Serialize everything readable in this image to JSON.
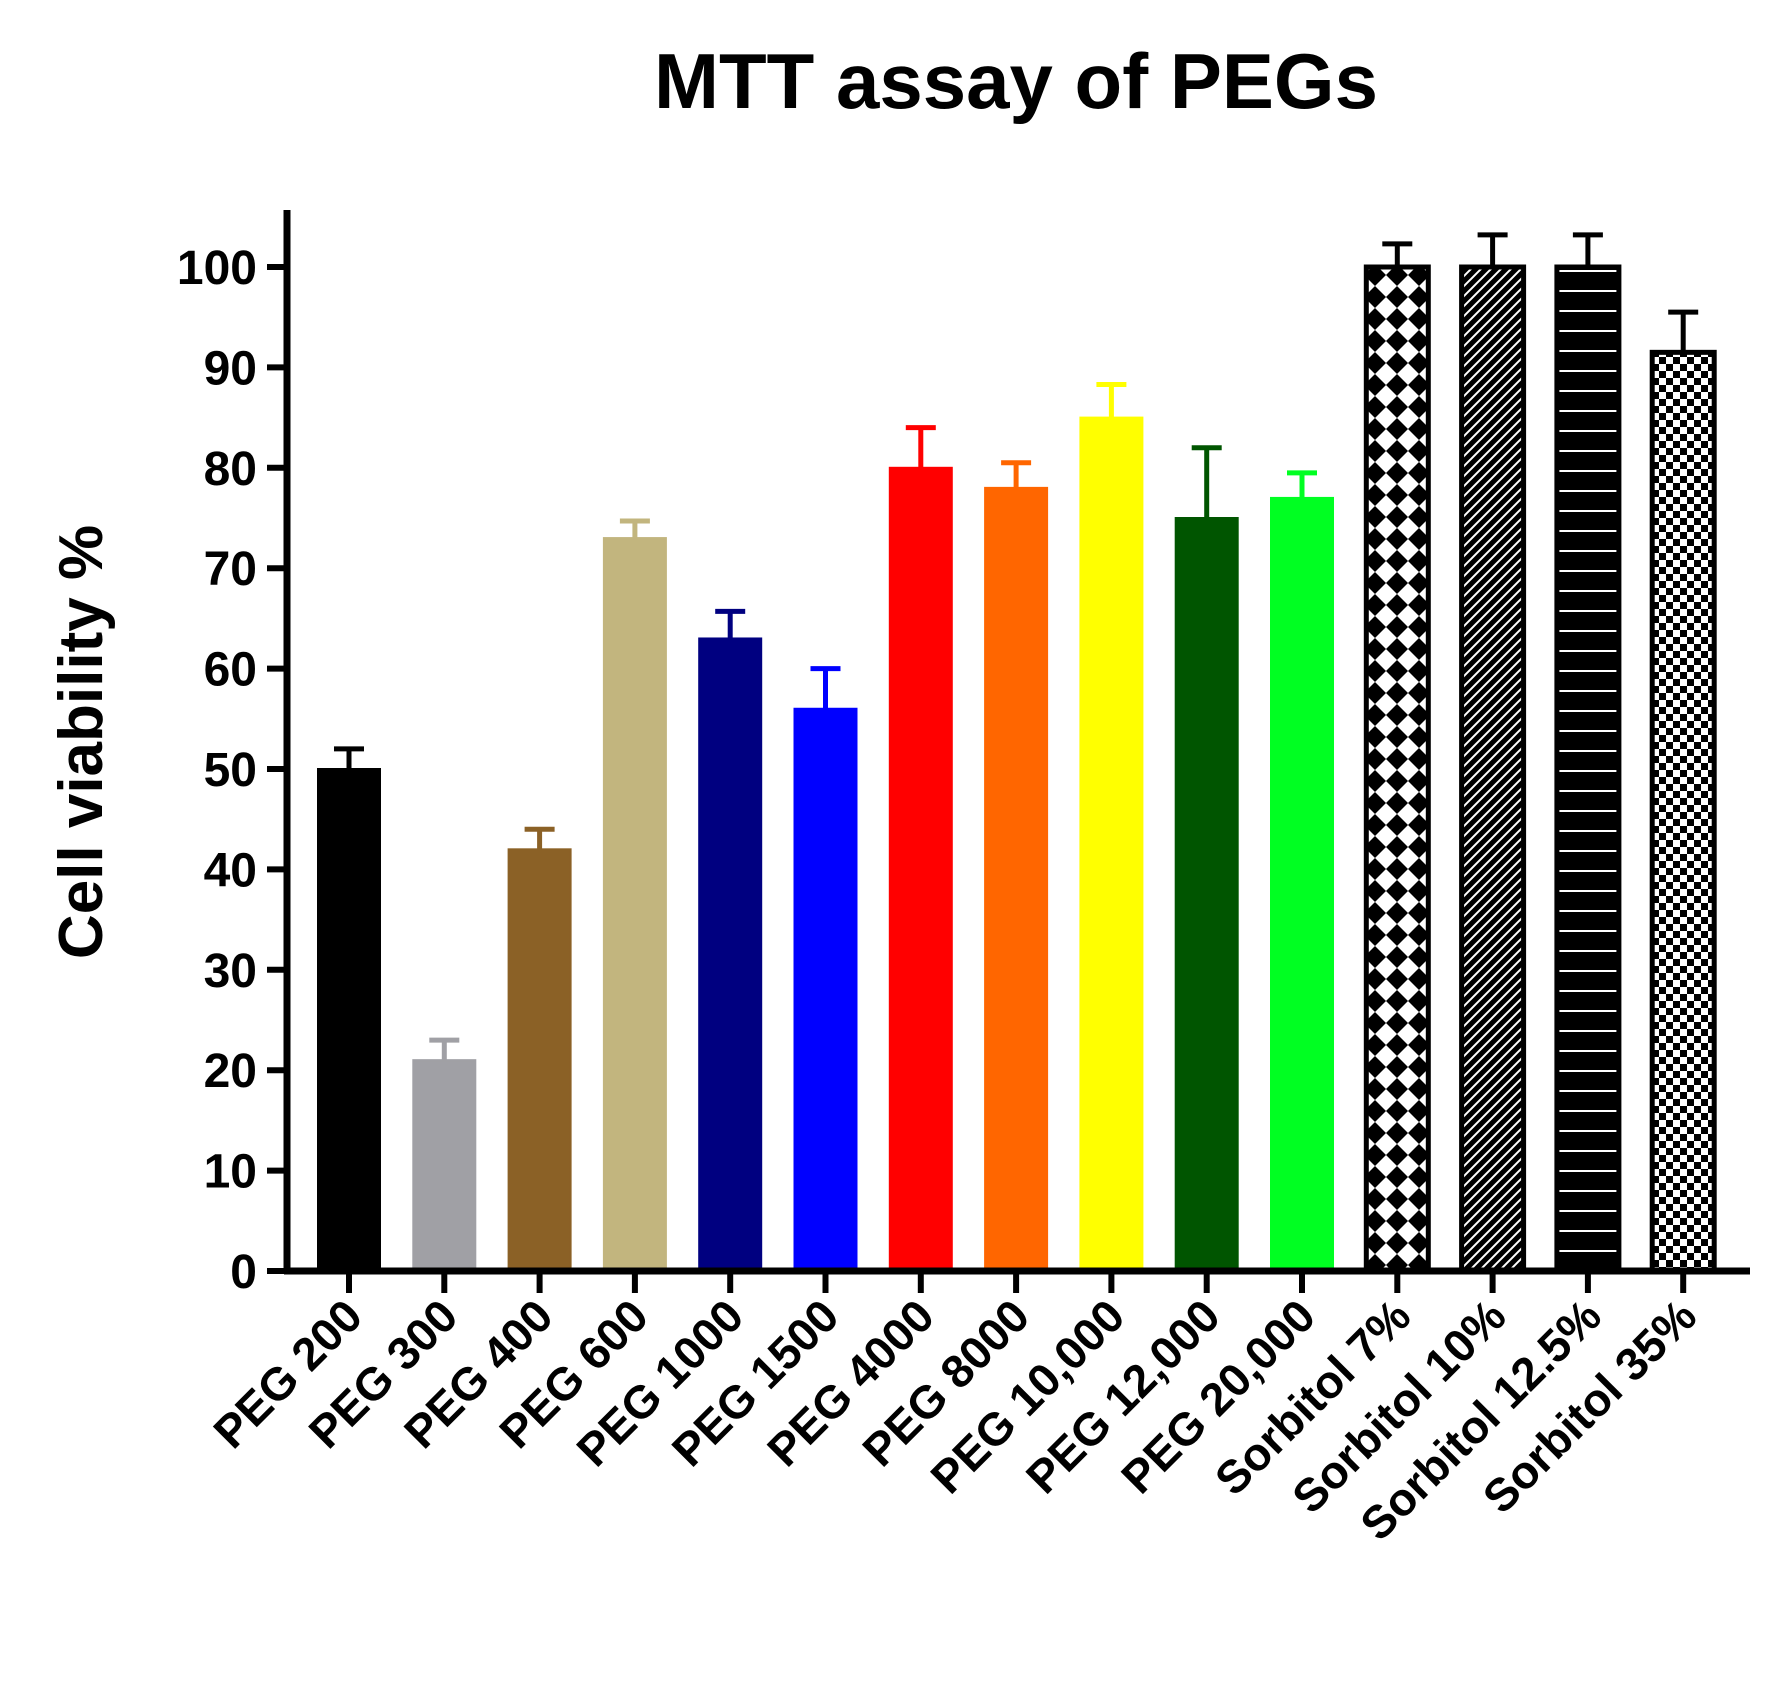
{
  "chart_data": {
    "type": "bar",
    "title": "MTT assay of PEGs",
    "xlabel": "",
    "ylabel": "Cell viability %",
    "ylim": [
      0,
      105
    ],
    "yticks": [
      0,
      10,
      20,
      30,
      40,
      50,
      60,
      70,
      80,
      90,
      100
    ],
    "grid": false,
    "legend": "none",
    "categories": [
      "PEG 200",
      "PEG 300",
      "PEG 400",
      "PEG 600",
      "PEG 1000",
      "PEG 1500",
      "PEG 4000",
      "PEG 8000",
      "PEG 10,000",
      "PEG 12,000",
      "PEG 20,000",
      "Sorbitol 7%",
      "Sorbitol 10%",
      "Sorbitol 12.5%",
      "Sorbitol 35%"
    ],
    "values": [
      50,
      21,
      42,
      73,
      63,
      56,
      80,
      78,
      85,
      75,
      77,
      100,
      100,
      100,
      91.5
    ],
    "errors": [
      2,
      2,
      2,
      1.7,
      2.7,
      4,
      4,
      2.5,
      3.3,
      7,
      2.5,
      2.3,
      3.2,
      3.2,
      4
    ],
    "colors": [
      "#000000",
      "#a0a0a5",
      "#8b6126",
      "#c2b57e",
      "#000080",
      "#0000ff",
      "#ff0000",
      "#ff6600",
      "#ffff00",
      "#005500",
      "#00ff22",
      "#000000",
      "#000000",
      "#000000",
      "#000000"
    ],
    "fills": [
      "solid",
      "solid",
      "solid",
      "solid",
      "solid",
      "solid",
      "solid",
      "solid",
      "solid",
      "solid",
      "solid",
      "diamond-pattern",
      "diagonal-hatch",
      "horizontal-lines",
      "checkerboard"
    ]
  }
}
